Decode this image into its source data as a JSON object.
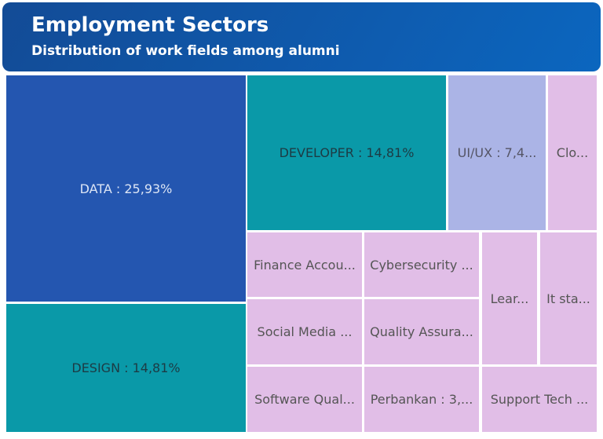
{
  "header": {
    "title": "Employment Sectors",
    "subtitle": "Distribution of work fields among alumni"
  },
  "chart_data": {
    "type": "treemap",
    "title": "Employment Sectors",
    "subtitle": "Distribution of work fields among alumni",
    "unit": "percent",
    "items": [
      {
        "label": "DATA : 25,93%",
        "value": 25.93,
        "color": "#2456b0",
        "text_color": "#dce5f5"
      },
      {
        "label": "DESIGN : 14,81%",
        "value": 14.81,
        "color": "#0a99a8",
        "text_color": "#1d3b44"
      },
      {
        "label": "DEVELOPER : 14,81%",
        "value": 14.81,
        "color": "#0a99a8",
        "text_color": "#1d3b44"
      },
      {
        "label": "UI/UX : 7,4...",
        "value": 7.41,
        "color": "#abb4e6",
        "text_color": "#555566"
      },
      {
        "label": "Clo...",
        "value": 3.7,
        "color": "#e1bee7",
        "text_color": "#555555"
      },
      {
        "label": "Finance Accou...",
        "value": 3.7,
        "color": "#e1bee7",
        "text_color": "#555555"
      },
      {
        "label": "Cybersecurity ...",
        "value": 3.7,
        "color": "#e1bee7",
        "text_color": "#555555"
      },
      {
        "label": "Lear...",
        "value": 3.7,
        "color": "#e1bee7",
        "text_color": "#555555"
      },
      {
        "label": "It sta...",
        "value": 3.7,
        "color": "#e1bee7",
        "text_color": "#555555"
      },
      {
        "label": "Social Media ...",
        "value": 3.7,
        "color": "#e1bee7",
        "text_color": "#555555"
      },
      {
        "label": "Quality Assura...",
        "value": 3.7,
        "color": "#e1bee7",
        "text_color": "#555555"
      },
      {
        "label": "Software Qual...",
        "value": 3.7,
        "color": "#e1bee7",
        "text_color": "#555555"
      },
      {
        "label": "Perbankan : 3,...",
        "value": 3.7,
        "color": "#e1bee7",
        "text_color": "#555555"
      },
      {
        "label": "Support Tech ...",
        "value": 3.7,
        "color": "#e1bee7",
        "text_color": "#555555"
      }
    ]
  }
}
